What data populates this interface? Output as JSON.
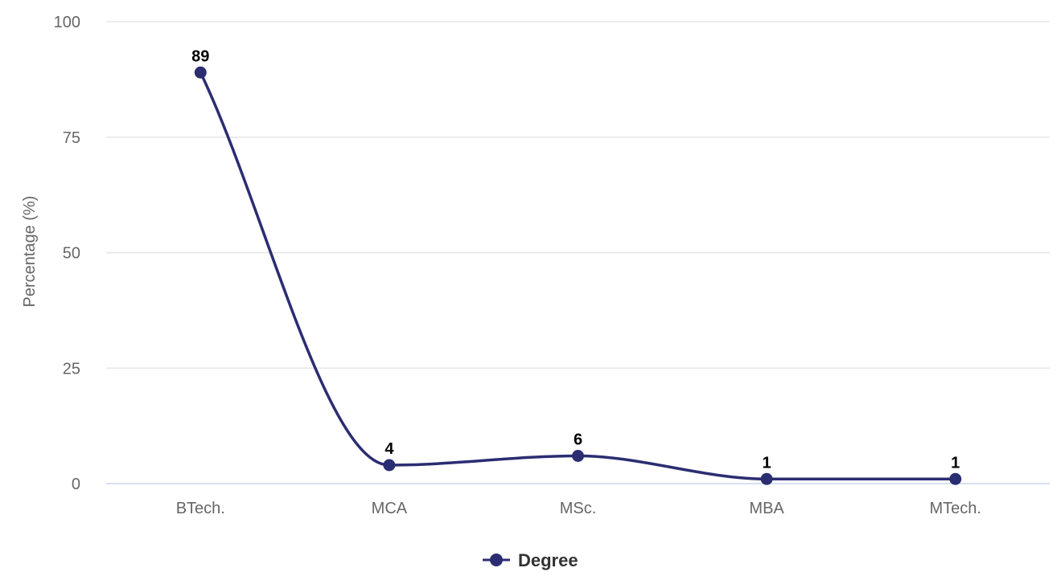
{
  "chart_data": {
    "type": "line",
    "categories": [
      "BTech.",
      "MCA",
      "MSc.",
      "MBA",
      "MTech."
    ],
    "series": [
      {
        "name": "Degree",
        "values": [
          89,
          4,
          6,
          1,
          1
        ]
      }
    ],
    "xlabel": "",
    "ylabel": "Percentage (%)",
    "ylim": [
      0,
      100
    ],
    "yticks": [
      0,
      25,
      50,
      75,
      100
    ],
    "grid": true,
    "smooth": true,
    "data_labels": true,
    "legend_position": "bottom-center",
    "colors": {
      "series": "#2b2d72",
      "grid": "#e6e6e6",
      "axis": "#ccd6eb"
    }
  }
}
